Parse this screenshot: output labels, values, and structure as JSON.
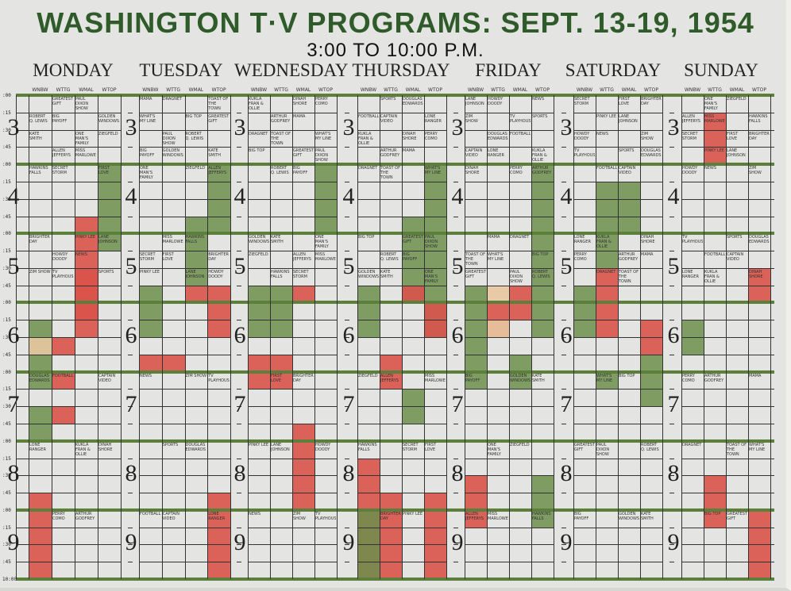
{
  "board": {
    "title": "WASHINGTON T·V PROGRAMS: SEPT. 13-19, 1954",
    "subtitle": "3:00 TO 10:00 P.M.",
    "days": [
      "MONDAY",
      "TUESDAY",
      "WEDNESDAY",
      "THURSDAY",
      "FRIDAY",
      "SATURDAY",
      "SUNDAY"
    ],
    "stations": [
      "WNBW",
      "WTTG",
      "WMAL",
      "WTOP"
    ],
    "time_labels": [
      ":00",
      ":15",
      ":30",
      ":45"
    ],
    "hours": [
      "3",
      "4",
      "5",
      "6",
      "7",
      "8",
      "9"
    ],
    "end_label": "10:00"
  },
  "colors": {
    "board": "#e4e5e2",
    "title": "#2f5a2a",
    "green": "#5c7f3c",
    "red": "#d9534a",
    "tan": "#e9c9a2",
    "grid": "#333333"
  },
  "sample_programs": [
    "GREATEST GIFT",
    "PAUL DIXON SHOW",
    "ROBERT Q. LEWIS",
    "BIG PAYOFF",
    "GOLDEN WINDOWS",
    "KATE SMITH",
    "ONE MAN'S FAMILY",
    "ZIEGFELD",
    "ALLEN JEFFERYS",
    "MISS MARLOWE",
    "HAWKINS FALLS",
    "SECRET STORM",
    "FIRST LOVE",
    "BRIGHTER DAY",
    "PINKY LEE",
    "LANE JOHNSON",
    "HOWDY DOODY",
    "NEWS",
    "ZIM SHOW",
    "TV PLAYHOUSE",
    "SPORTS",
    "DOUGLAS EDWARDS",
    "FOOTBALL",
    "CAPTAIN VIDEO",
    "LONE RANGER",
    "KUKLA FRAN & OLLIE",
    "DINAH SHORE",
    "PERRY COMO",
    "ARTHUR GODFREY",
    "MAMA",
    "DRAGNET",
    "TOAST OF THE TOWN",
    "WHAT'S MY LINE",
    "BIG TOP"
  ]
}
